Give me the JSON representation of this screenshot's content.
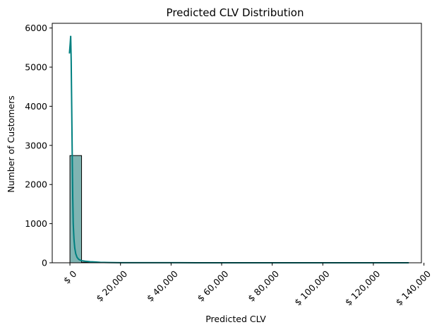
{
  "chart_data": {
    "type": "bar",
    "title": "Predicted CLV Distribution",
    "xlabel": "Predicted CLV",
    "ylabel": "Number of Customers",
    "xlim": [
      -7000,
      139000
    ],
    "ylim": [
      0,
      6120
    ],
    "x_ticks": [
      0,
      20000,
      40000,
      60000,
      80000,
      100000,
      120000,
      140000
    ],
    "x_tick_labels": [
      "$ 0",
      "$ 20,000",
      "$ 40,000",
      "$ 60,000",
      "$ 80,000",
      "$ 100,000",
      "$ 120,000",
      "$ 140,000"
    ],
    "y_ticks": [
      0,
      1000,
      2000,
      3000,
      4000,
      5000,
      6000
    ],
    "y_tick_labels": [
      "0",
      "1000",
      "2000",
      "3000",
      "4000",
      "5000",
      "6000"
    ],
    "grid": false,
    "bins": [
      {
        "x0": 0,
        "x1": 4600,
        "count": 2740
      },
      {
        "x0": 4600,
        "x1": 9200,
        "count": 14
      },
      {
        "x0": 9200,
        "x1": 13800,
        "count": 4
      },
      {
        "x0": 13800,
        "x1": 18400,
        "count": 2
      },
      {
        "x0": 18400,
        "x1": 23000,
        "count": 1
      },
      {
        "x0": 23000,
        "x1": 27600,
        "count": 1
      },
      {
        "x0": 27600,
        "x1": 32200,
        "count": 1
      },
      {
        "x0": 32200,
        "x1": 36800,
        "count": 0
      },
      {
        "x0": 36800,
        "x1": 41400,
        "count": 0
      },
      {
        "x0": 41400,
        "x1": 46000,
        "count": 1
      },
      {
        "x0": 46000,
        "x1": 50600,
        "count": 0
      },
      {
        "x0": 50600,
        "x1": 55200,
        "count": 0
      },
      {
        "x0": 55200,
        "x1": 59800,
        "count": 0
      },
      {
        "x0": 59800,
        "x1": 64400,
        "count": 1
      },
      {
        "x0": 64400,
        "x1": 69000,
        "count": 0
      },
      {
        "x0": 69000,
        "x1": 73600,
        "count": 0
      },
      {
        "x0": 73600,
        "x1": 78200,
        "count": 0
      },
      {
        "x0": 78200,
        "x1": 82800,
        "count": 0
      },
      {
        "x0": 82800,
        "x1": 87400,
        "count": 0
      },
      {
        "x0": 87400,
        "x1": 92000,
        "count": 0
      },
      {
        "x0": 92000,
        "x1": 96600,
        "count": 0
      },
      {
        "x0": 96600,
        "x1": 101200,
        "count": 0
      },
      {
        "x0": 101200,
        "x1": 105800,
        "count": 0
      },
      {
        "x0": 105800,
        "x1": 110400,
        "count": 0
      },
      {
        "x0": 110400,
        "x1": 115000,
        "count": 0
      },
      {
        "x0": 115000,
        "x1": 119600,
        "count": 0
      },
      {
        "x0": 119600,
        "x1": 124200,
        "count": 0
      },
      {
        "x0": 124200,
        "x1": 128800,
        "count": 0
      },
      {
        "x0": 128800,
        "x1": 134000,
        "count": 1
      }
    ],
    "kde": {
      "x": [
        -200,
        100,
        300,
        500,
        700,
        900,
        1100,
        1300,
        1600,
        1900,
        2300,
        2800,
        3500,
        4500,
        6000,
        8000,
        10000,
        12000,
        15000,
        20000,
        30000,
        50000,
        80000,
        110000,
        134000
      ],
      "y": [
        5350,
        5600,
        5800,
        5150,
        4000,
        2800,
        1700,
        1000,
        600,
        380,
        230,
        140,
        85,
        55,
        40,
        28,
        20,
        12,
        6,
        3,
        2,
        1,
        1,
        1,
        0
      ]
    },
    "colors": {
      "bar_fill": "#7fb4b2",
      "bar_edge": "#000000",
      "kde_line": "#008080",
      "axis": "#000000"
    }
  }
}
